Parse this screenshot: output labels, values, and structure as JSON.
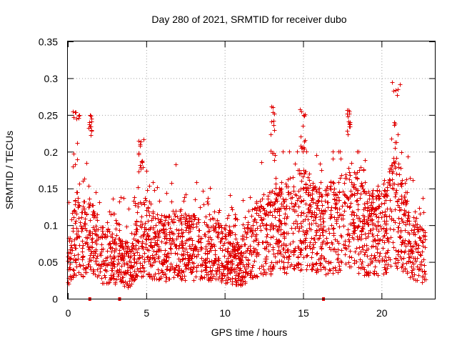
{
  "chart_data": {
    "type": "scatter",
    "title": "Day 280 of 2021, SRMTID for receiver dubo",
    "xlabel": "GPS time / hours",
    "ylabel": "SRMTID / TECUs",
    "xlim": [
      0,
      23.4
    ],
    "ylim": [
      0,
      0.35
    ],
    "x_ticks": [
      0,
      5,
      10,
      15,
      20
    ],
    "x_tick_labels": [
      "0",
      "5",
      "10",
      "15",
      "20"
    ],
    "y_ticks": [
      0,
      0.05,
      0.1,
      0.15,
      0.2,
      0.25,
      0.3,
      0.35
    ],
    "y_tick_labels": [
      "0",
      "0.05",
      "0.1",
      "0.15",
      "0.2",
      "0.25",
      "0.3",
      "0.35"
    ],
    "grid": true,
    "marker": "plus",
    "color": "#e00000",
    "x_range": [
      0,
      22.8
    ],
    "trend": [
      [
        0,
        0.05
      ],
      [
        0.5,
        0.09
      ],
      [
        1,
        0.08
      ],
      [
        1.5,
        0.08
      ],
      [
        2,
        0.06
      ],
      [
        2.5,
        0.06
      ],
      [
        3,
        0.05
      ],
      [
        3.5,
        0.05
      ],
      [
        4,
        0.04
      ],
      [
        4.5,
        0.08
      ],
      [
        5,
        0.09
      ],
      [
        5.5,
        0.07
      ],
      [
        6,
        0.07
      ],
      [
        7,
        0.07
      ],
      [
        8,
        0.07
      ],
      [
        9,
        0.07
      ],
      [
        10,
        0.06
      ],
      [
        11,
        0.05
      ],
      [
        12,
        0.08
      ],
      [
        13,
        0.09
      ],
      [
        14,
        0.1
      ],
      [
        15,
        0.11
      ],
      [
        16,
        0.09
      ],
      [
        17,
        0.1
      ],
      [
        18,
        0.11
      ],
      [
        19,
        0.09
      ],
      [
        20,
        0.09
      ],
      [
        20.8,
        0.12
      ],
      [
        21.5,
        0.1
      ],
      [
        22,
        0.07
      ],
      [
        22.8,
        0.06
      ]
    ],
    "high_clusters": [
      {
        "x": [
          0.3,
          0.8
        ],
        "y": [
          0.18,
          0.26
        ]
      },
      {
        "x": [
          1.3,
          1.5
        ],
        "y": [
          0.22,
          0.25
        ]
      },
      {
        "x": [
          4.5,
          5.0
        ],
        "y": [
          0.17,
          0.22
        ]
      },
      {
        "x": [
          12.9,
          13.2
        ],
        "y": [
          0.18,
          0.27
        ]
      },
      {
        "x": [
          14.8,
          15.1
        ],
        "y": [
          0.2,
          0.26
        ]
      },
      {
        "x": [
          17.8,
          18.0
        ],
        "y": [
          0.22,
          0.26
        ]
      },
      {
        "x": [
          20.6,
          21.2
        ],
        "y": [
          0.2,
          0.3
        ]
      }
    ],
    "gap_markers_x": [
      1.4,
      3.3,
      16.3
    ]
  }
}
